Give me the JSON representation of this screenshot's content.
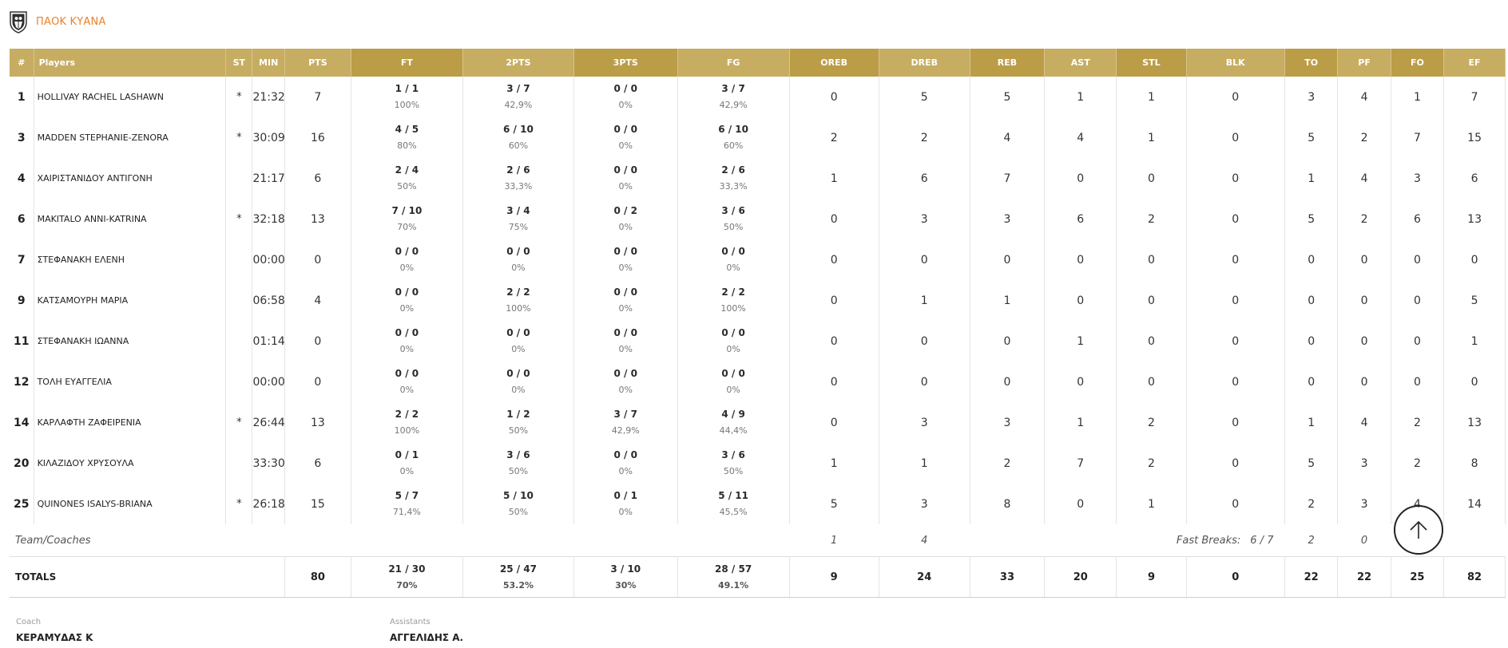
{
  "team": {
    "name": "ΠΑΟΚ ΚΥΑΝΑ",
    "logo_icon": "paok-eagle-logo-icon"
  },
  "colors": {
    "header_bg": "#c7ad62",
    "header_bg_dark": "#bb9d48",
    "accent": "#e8822a"
  },
  "columns": [
    "#",
    "Players",
    "ST",
    "MIN",
    "PTS",
    "FT",
    "2PTS",
    "3PTS",
    "FG",
    "OREB",
    "DREB",
    "REB",
    "AST",
    "STL",
    "BLK",
    "TO",
    "PF",
    "FO",
    "EF"
  ],
  "players": [
    {
      "num": "1",
      "name": "HOLLIVAY RACHEL LASHAWN",
      "st": "*",
      "min": "21:32",
      "pts": "7",
      "ft": {
        "made": "1 / 1",
        "pct": "100%"
      },
      "two": {
        "made": "3 / 7",
        "pct": "42,9%"
      },
      "three": {
        "made": "0 / 0",
        "pct": "0%"
      },
      "fg": {
        "made": "3 / 7",
        "pct": "42,9%"
      },
      "oreb": "0",
      "dreb": "5",
      "reb": "5",
      "ast": "1",
      "stl": "1",
      "blk": "0",
      "to": "3",
      "pf": "4",
      "fo": "1",
      "ef": "7"
    },
    {
      "num": "3",
      "name": "MADDEN STEPHANIE-ZENORA",
      "st": "*",
      "min": "30:09",
      "pts": "16",
      "ft": {
        "made": "4 / 5",
        "pct": "80%"
      },
      "two": {
        "made": "6 / 10",
        "pct": "60%"
      },
      "three": {
        "made": "0 / 0",
        "pct": "0%"
      },
      "fg": {
        "made": "6 / 10",
        "pct": "60%"
      },
      "oreb": "2",
      "dreb": "2",
      "reb": "4",
      "ast": "4",
      "stl": "1",
      "blk": "0",
      "to": "5",
      "pf": "2",
      "fo": "7",
      "ef": "15"
    },
    {
      "num": "4",
      "name": "ΧΑΙΡΙΣΤΑΝΙΔΟΥ ΑΝΤΙΓΟΝΗ",
      "st": "",
      "min": "21:17",
      "pts": "6",
      "ft": {
        "made": "2 / 4",
        "pct": "50%"
      },
      "two": {
        "made": "2 / 6",
        "pct": "33,3%"
      },
      "three": {
        "made": "0 / 0",
        "pct": "0%"
      },
      "fg": {
        "made": "2 / 6",
        "pct": "33,3%"
      },
      "oreb": "1",
      "dreb": "6",
      "reb": "7",
      "ast": "0",
      "stl": "0",
      "blk": "0",
      "to": "1",
      "pf": "4",
      "fo": "3",
      "ef": "6"
    },
    {
      "num": "6",
      "name": "MAKITALO ANNI-KATRINA",
      "st": "*",
      "min": "32:18",
      "pts": "13",
      "ft": {
        "made": "7 / 10",
        "pct": "70%"
      },
      "two": {
        "made": "3 / 4",
        "pct": "75%"
      },
      "three": {
        "made": "0 / 2",
        "pct": "0%"
      },
      "fg": {
        "made": "3 / 6",
        "pct": "50%"
      },
      "oreb": "0",
      "dreb": "3",
      "reb": "3",
      "ast": "6",
      "stl": "2",
      "blk": "0",
      "to": "5",
      "pf": "2",
      "fo": "6",
      "ef": "13"
    },
    {
      "num": "7",
      "name": "ΣΤΕΦΑΝΑΚΗ ΕΛΕΝΗ",
      "st": "",
      "min": "00:00",
      "pts": "0",
      "ft": {
        "made": "0 / 0",
        "pct": "0%"
      },
      "two": {
        "made": "0 / 0",
        "pct": "0%"
      },
      "three": {
        "made": "0 / 0",
        "pct": "0%"
      },
      "fg": {
        "made": "0 / 0",
        "pct": "0%"
      },
      "oreb": "0",
      "dreb": "0",
      "reb": "0",
      "ast": "0",
      "stl": "0",
      "blk": "0",
      "to": "0",
      "pf": "0",
      "fo": "0",
      "ef": "0"
    },
    {
      "num": "9",
      "name": "ΚΑΤΣΑΜΟΥΡΗ ΜΑΡΙΑ",
      "st": "",
      "min": "06:58",
      "pts": "4",
      "ft": {
        "made": "0 / 0",
        "pct": "0%"
      },
      "two": {
        "made": "2 / 2",
        "pct": "100%"
      },
      "three": {
        "made": "0 / 0",
        "pct": "0%"
      },
      "fg": {
        "made": "2 / 2",
        "pct": "100%"
      },
      "oreb": "0",
      "dreb": "1",
      "reb": "1",
      "ast": "0",
      "stl": "0",
      "blk": "0",
      "to": "0",
      "pf": "0",
      "fo": "0",
      "ef": "5"
    },
    {
      "num": "11",
      "name": "ΣΤΕΦΑΝΑΚΗ ΙΩΑΝΝΑ",
      "st": "",
      "min": "01:14",
      "pts": "0",
      "ft": {
        "made": "0 / 0",
        "pct": "0%"
      },
      "two": {
        "made": "0 / 0",
        "pct": "0%"
      },
      "three": {
        "made": "0 / 0",
        "pct": "0%"
      },
      "fg": {
        "made": "0 / 0",
        "pct": "0%"
      },
      "oreb": "0",
      "dreb": "0",
      "reb": "0",
      "ast": "1",
      "stl": "0",
      "blk": "0",
      "to": "0",
      "pf": "0",
      "fo": "0",
      "ef": "1"
    },
    {
      "num": "12",
      "name": "ΤΟΛΗ ΕΥΑΓΓΕΛΙΑ",
      "st": "",
      "min": "00:00",
      "pts": "0",
      "ft": {
        "made": "0 / 0",
        "pct": "0%"
      },
      "two": {
        "made": "0 / 0",
        "pct": "0%"
      },
      "three": {
        "made": "0 / 0",
        "pct": "0%"
      },
      "fg": {
        "made": "0 / 0",
        "pct": "0%"
      },
      "oreb": "0",
      "dreb": "0",
      "reb": "0",
      "ast": "0",
      "stl": "0",
      "blk": "0",
      "to": "0",
      "pf": "0",
      "fo": "0",
      "ef": "0"
    },
    {
      "num": "14",
      "name": "ΚΑΡΛΑΦΤΗ ΖΑΦΕΙΡΕΝΙΑ",
      "st": "*",
      "min": "26:44",
      "pts": "13",
      "ft": {
        "made": "2 / 2",
        "pct": "100%"
      },
      "two": {
        "made": "1 / 2",
        "pct": "50%"
      },
      "three": {
        "made": "3 / 7",
        "pct": "42,9%"
      },
      "fg": {
        "made": "4 / 9",
        "pct": "44,4%"
      },
      "oreb": "0",
      "dreb": "3",
      "reb": "3",
      "ast": "1",
      "stl": "2",
      "blk": "0",
      "to": "1",
      "pf": "4",
      "fo": "2",
      "ef": "13"
    },
    {
      "num": "20",
      "name": "ΚΙΛΑΖΙΔΟΥ ΧΡΥΣΟΥΛΑ",
      "st": "",
      "min": "33:30",
      "pts": "6",
      "ft": {
        "made": "0 / 1",
        "pct": "0%"
      },
      "two": {
        "made": "3 / 6",
        "pct": "50%"
      },
      "three": {
        "made": "0 / 0",
        "pct": "0%"
      },
      "fg": {
        "made": "3 / 6",
        "pct": "50%"
      },
      "oreb": "1",
      "dreb": "1",
      "reb": "2",
      "ast": "7",
      "stl": "2",
      "blk": "0",
      "to": "5",
      "pf": "3",
      "fo": "2",
      "ef": "8"
    },
    {
      "num": "25",
      "name": "QUINONES ISALYS-BRIANA",
      "st": "*",
      "min": "26:18",
      "pts": "15",
      "ft": {
        "made": "5 / 7",
        "pct": "71,4%"
      },
      "two": {
        "made": "5 / 10",
        "pct": "50%"
      },
      "three": {
        "made": "0 / 1",
        "pct": "0%"
      },
      "fg": {
        "made": "5 / 11",
        "pct": "45,5%"
      },
      "oreb": "5",
      "dreb": "3",
      "reb": "8",
      "ast": "0",
      "stl": "1",
      "blk": "0",
      "to": "2",
      "pf": "3",
      "fo": "4",
      "ef": "14"
    }
  ],
  "team_row": {
    "label": "Team/Coaches",
    "oreb": "1",
    "dreb": "4",
    "fast_breaks_label": "Fast Breaks:",
    "fast_breaks_value": "6 / 7",
    "to": "2",
    "pf": "0"
  },
  "totals": {
    "label": "TOTALS",
    "pts": "80",
    "ft": {
      "made": "21 / 30",
      "pct": "70%"
    },
    "two": {
      "made": "25 / 47",
      "pct": "53.2%"
    },
    "three": {
      "made": "3 / 10",
      "pct": "30%"
    },
    "fg": {
      "made": "28 / 57",
      "pct": "49.1%"
    },
    "oreb": "9",
    "dreb": "24",
    "reb": "33",
    "ast": "20",
    "stl": "9",
    "blk": "0",
    "to": "22",
    "pf": "22",
    "fo": "25",
    "ef": "82"
  },
  "coach": {
    "label": "Coach",
    "name": "ΚΕΡΑΜΥΔΑΣ Κ"
  },
  "assistants": {
    "label": "Assistants",
    "name": "ΑΓΓΕΛΙΔΗΣ Α."
  },
  "scroll_top_icon": "arrow-up-icon"
}
